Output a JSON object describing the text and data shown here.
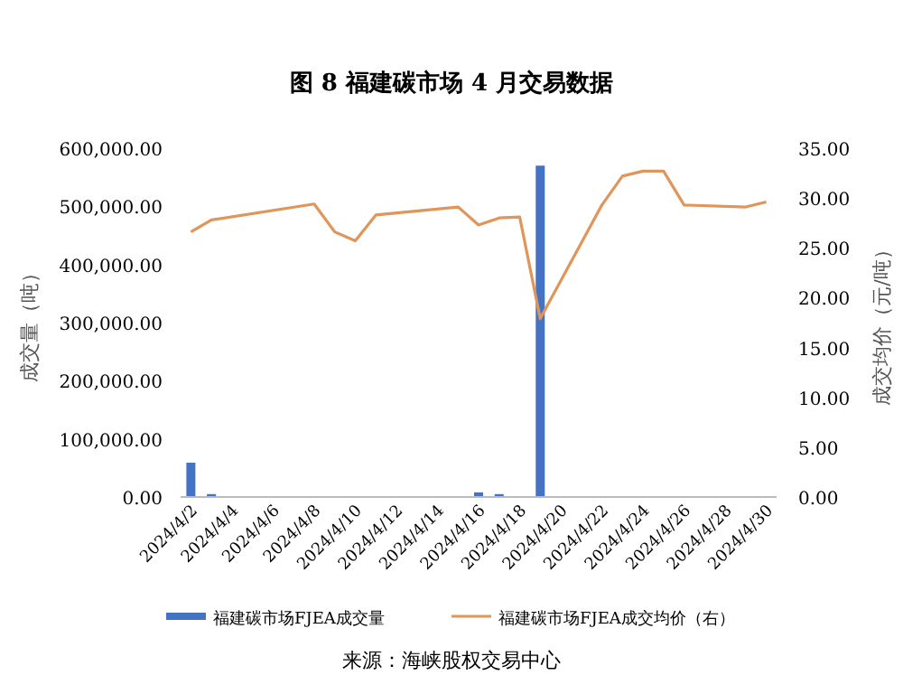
{
  "chart_data": {
    "type": "bar",
    "title": "图 8  福建碳市场 4 月交易数据",
    "ylabel": "成交量（吨）",
    "y2label": "成交均价（元/吨）",
    "x": [
      "2024-04-02",
      "2024-04-03",
      "2024-04-08",
      "2024-04-09",
      "2024-04-10",
      "2024-04-11",
      "2024-04-15",
      "2024-04-16",
      "2024-04-17",
      "2024-04-18",
      "2024-04-19",
      "2024-04-22",
      "2024-04-23",
      "2024-04-24",
      "2024-04-25",
      "2024-04-26",
      "2024-04-29",
      "2024-04-30"
    ],
    "series": [
      {
        "name": "福建碳市场FJEA成交量",
        "color": "#4472c4",
        "values": [
          59000,
          5000,
          null,
          1000,
          1000,
          null,
          null,
          8000,
          5000,
          1000,
          570000,
          null,
          null,
          null,
          null,
          null,
          null,
          null
        ]
      },
      {
        "name": "福建碳市场FJEA成交均价（右）",
        "type": "line",
        "axis": "y2",
        "color": "#e0955a",
        "values": [
          26.6,
          27.8,
          29.4,
          26.6,
          25.7,
          28.3,
          29.1,
          27.3,
          28.0,
          28.1,
          17.9,
          29.3,
          32.2,
          32.7,
          32.7,
          29.3,
          29.1,
          29.6
        ]
      }
    ],
    "xlim": [
      "2024-04-01T12:00",
      "2024-04-30T12:00"
    ],
    "xticks": [
      {
        "value": "2024-04-02",
        "label": "2024/4/2"
      },
      {
        "value": "2024-04-04",
        "label": "2024/4/4"
      },
      {
        "value": "2024-04-06",
        "label": "2024/4/6"
      },
      {
        "value": "2024-04-08",
        "label": "2024/4/8"
      },
      {
        "value": "2024-04-10",
        "label": "2024/4/10"
      },
      {
        "value": "2024-04-12",
        "label": "2024/4/12"
      },
      {
        "value": "2024-04-14",
        "label": "2024/4/14"
      },
      {
        "value": "2024-04-16",
        "label": "2024/4/16"
      },
      {
        "value": "2024-04-18",
        "label": "2024/4/18"
      },
      {
        "value": "2024-04-20",
        "label": "2024/4/20"
      },
      {
        "value": "2024-04-22",
        "label": "2024/4/22"
      },
      {
        "value": "2024-04-24",
        "label": "2024/4/24"
      },
      {
        "value": "2024-04-26",
        "label": "2024/4/26"
      },
      {
        "value": "2024-04-28",
        "label": "2024/4/28"
      },
      {
        "value": "2024-04-30",
        "label": "2024/4/30"
      }
    ],
    "ylim": [
      0,
      600000
    ],
    "yticks": [
      {
        "value": 0,
        "label": "0.00"
      },
      {
        "value": 100000,
        "label": "100,000.00"
      },
      {
        "value": 200000,
        "label": "200,000.00"
      },
      {
        "value": 300000,
        "label": "300,000.00"
      },
      {
        "value": 400000,
        "label": "400,000.00"
      },
      {
        "value": 500000,
        "label": "500,000.00"
      },
      {
        "value": 600000,
        "label": "600,000.00"
      }
    ],
    "y2lim": [
      0,
      35
    ],
    "y2ticks": [
      {
        "value": 0,
        "label": "0.00"
      },
      {
        "value": 5,
        "label": "5.00"
      },
      {
        "value": 10,
        "label": "10.00"
      },
      {
        "value": 15,
        "label": "15.00"
      },
      {
        "value": 20,
        "label": "20.00"
      },
      {
        "value": 25,
        "label": "25.00"
      },
      {
        "value": 30,
        "label": "30.00"
      },
      {
        "value": 35,
        "label": "35.00"
      }
    ],
    "grid": false,
    "legend": "bottom",
    "marker": "none",
    "line_style": "solid",
    "annotations": [
      "来源：海峡股权交易中心"
    ]
  }
}
